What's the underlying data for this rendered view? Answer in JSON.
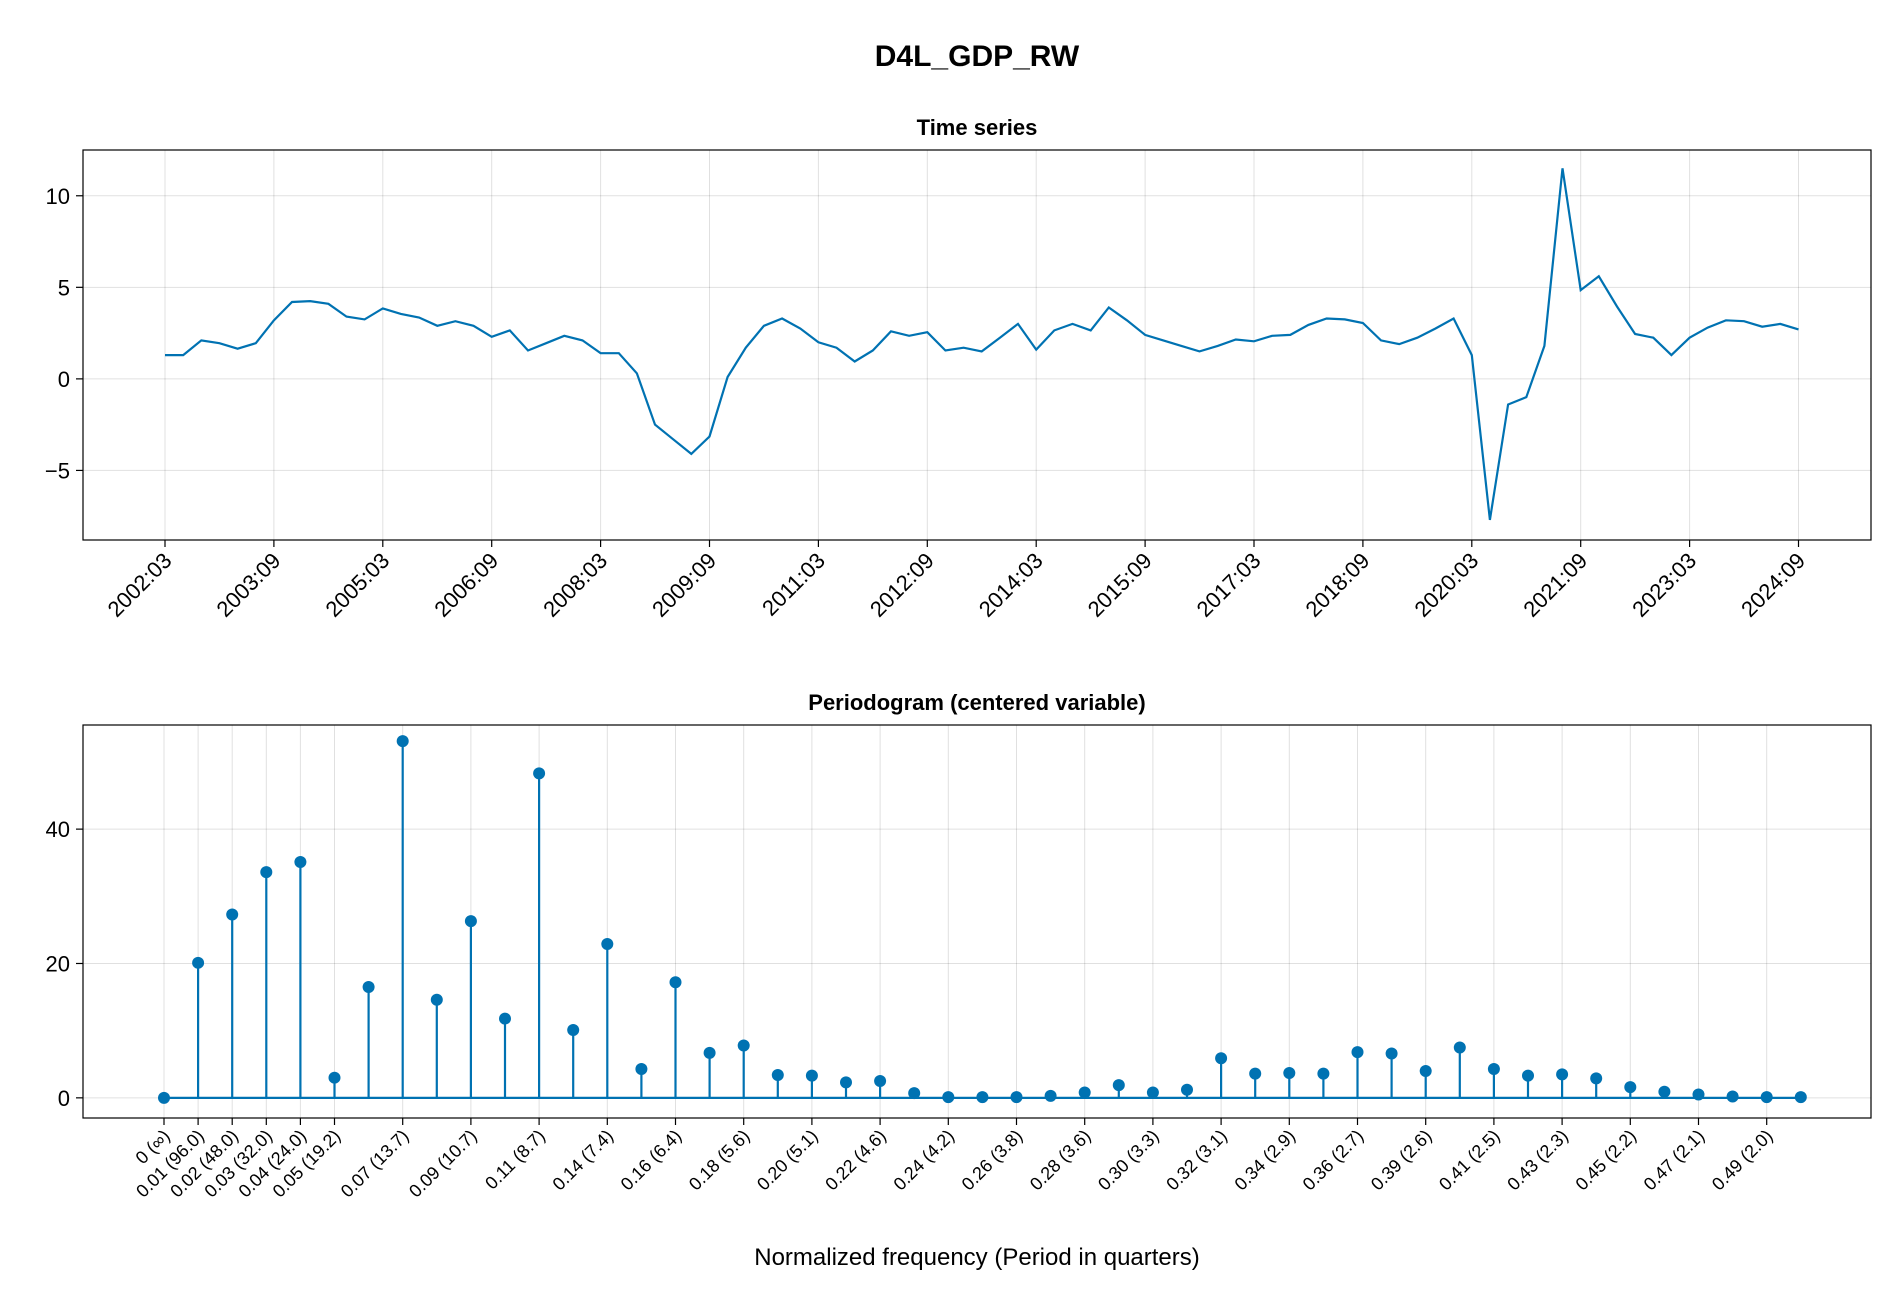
{
  "figure_title": "D4L_GDP_RW",
  "chart_data": [
    {
      "type": "line",
      "title": "Time series",
      "xlabel": "",
      "ylabel": "",
      "x_start": "2002:03",
      "x_step": "quarter",
      "x_ticks": [
        "2002:03",
        "2003:09",
        "2005:03",
        "2006:09",
        "2008:03",
        "2009:09",
        "2011:03",
        "2012:09",
        "2014:03",
        "2015:09",
        "2017:03",
        "2018:09",
        "2020:03",
        "2021:09",
        "2023:03",
        "2024:09"
      ],
      "y_ticks": [
        -5,
        0,
        5,
        10
      ],
      "ylim": [
        -8.8,
        12.5
      ],
      "grid": true,
      "series": [
        {
          "color": "#0072b2",
          "values": [
            1.3,
            1.3,
            2.1,
            1.95,
            1.65,
            1.95,
            3.2,
            4.2,
            4.25,
            4.1,
            3.4,
            3.25,
            3.85,
            3.55,
            3.35,
            2.9,
            3.15,
            2.9,
            2.3,
            2.65,
            1.55,
            1.95,
            2.35,
            2.1,
            1.4,
            1.4,
            0.3,
            -2.5,
            -3.3,
            -4.1,
            -3.15,
            0.1,
            1.7,
            2.9,
            3.3,
            2.75,
            2.0,
            1.7,
            0.95,
            1.55,
            2.6,
            2.35,
            2.55,
            1.55,
            1.7,
            1.5,
            2.25,
            3.0,
            1.6,
            2.65,
            3.0,
            2.65,
            3.9,
            3.2,
            2.4,
            2.1,
            1.8,
            1.5,
            1.8,
            2.15,
            2.05,
            2.35,
            2.4,
            2.95,
            3.3,
            3.25,
            3.05,
            2.1,
            1.9,
            2.25,
            2.75,
            3.3,
            1.3,
            -7.7,
            -1.4,
            -1.0,
            1.8,
            11.5,
            4.85,
            5.6,
            3.95,
            2.45,
            2.25,
            1.3,
            2.25,
            2.8,
            3.2,
            3.15,
            2.85,
            3.0,
            2.7
          ]
        }
      ]
    },
    {
      "type": "stem",
      "title": "Periodogram (centered variable)",
      "xlabel": "Normalized frequency (Period in quarters)",
      "ylabel": "",
      "x_tick_labels": [
        "0 (∞)",
        "0.01 (96.0)",
        "0.02 (48.0)",
        "0.03 (32.0)",
        "0.04 (24.0)",
        "0.05 (19.2)",
        "0.07 (13.7)",
        "0.09 (10.7)",
        "0.11 (8.7)",
        "0.14 (7.4)",
        "0.16 (6.4)",
        "0.18 (5.6)",
        "0.20 (5.1)",
        "0.22 (4.6)",
        "0.24 (4.2)",
        "0.26 (3.8)",
        "0.28 (3.6)",
        "0.30 (3.3)",
        "0.32 (3.1)",
        "0.34 (2.9)",
        "0.36 (2.7)",
        "0.39 (2.6)",
        "0.41 (2.5)",
        "0.43 (2.3)",
        "0.45 (2.2)",
        "0.47 (2.1)",
        "0.49 (2.0)"
      ],
      "x_tick_indices": [
        0,
        1,
        2,
        3,
        4,
        5,
        7,
        9,
        11,
        13,
        15,
        17,
        19,
        21,
        23,
        25,
        27,
        29,
        31,
        33,
        35,
        37,
        39,
        41,
        43,
        45,
        47
      ],
      "y_ticks": [
        0,
        20,
        40
      ],
      "ylim": [
        -3,
        55.5
      ],
      "grid": true,
      "series": [
        {
          "color": "#0072b2",
          "values": [
            0,
            20.1,
            27.3,
            33.6,
            35.1,
            3.0,
            16.5,
            53.1,
            14.6,
            26.3,
            11.8,
            48.3,
            10.1,
            22.9,
            4.3,
            17.2,
            6.7,
            7.8,
            3.4,
            3.3,
            2.3,
            2.5,
            0.7,
            0.1,
            0.1,
            0.1,
            0.3,
            0.8,
            1.9,
            0.8,
            1.2,
            5.9,
            3.6,
            3.7,
            3.6,
            6.8,
            6.6,
            4.0,
            7.5,
            4.3,
            3.3,
            3.5,
            2.9,
            1.6,
            0.9,
            0.5,
            0.2,
            0.1,
            0.1
          ]
        }
      ]
    }
  ]
}
